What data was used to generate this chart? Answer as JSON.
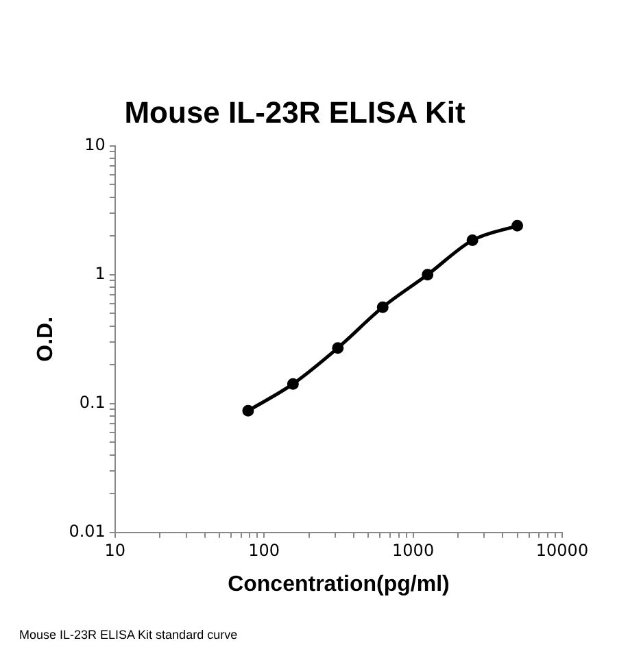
{
  "chart_data": {
    "type": "line",
    "title": "Mouse IL-23R ELISA Kit",
    "xlabel": "Concentration(pg/ml)",
    "ylabel": "O.D.",
    "annotations": [
      "Mouse IL-23R ELISA Kit standard curve"
    ],
    "x": [
      78.125,
      156.25,
      312.5,
      625,
      1250,
      2500,
      5000
    ],
    "series": [
      {
        "color": "#000000",
        "values": [
          0.088,
          0.142,
          0.27,
          0.56,
          1.0,
          1.85,
          2.4
        ]
      }
    ],
    "log": "xy",
    "xlim": [
      10,
      10000
    ],
    "ylim": [
      0.01,
      10
    ],
    "xticks": [
      10,
      {
        "value": 20,
        "label": null
      },
      {
        "value": 30,
        "label": null
      },
      {
        "value": 40,
        "label": null
      },
      {
        "value": 50,
        "label": null
      },
      {
        "value": 60,
        "label": null
      },
      {
        "value": 70,
        "label": null
      },
      {
        "value": 80,
        "label": null
      },
      {
        "value": 90,
        "label": null
      },
      100,
      {
        "value": 200,
        "label": null
      },
      {
        "value": 300,
        "label": null
      },
      {
        "value": 400,
        "label": null
      },
      {
        "value": 500,
        "label": null
      },
      {
        "value": 600,
        "label": null
      },
      {
        "value": 700,
        "label": null
      },
      {
        "value": 800,
        "label": null
      },
      {
        "value": 900,
        "label": null
      },
      1000,
      {
        "value": 2000,
        "label": null
      },
      {
        "value": 3000,
        "label": null
      },
      {
        "value": 4000,
        "label": null
      },
      {
        "value": 5000,
        "label": null
      },
      {
        "value": 6000,
        "label": null
      },
      {
        "value": 7000,
        "label": null
      },
      {
        "value": 8000,
        "label": null
      },
      {
        "value": 9000,
        "label": null
      },
      10000
    ],
    "yticks": [
      0.01,
      {
        "value": 0.02,
        "label": null
      },
      {
        "value": 0.03,
        "label": null
      },
      {
        "value": 0.04,
        "label": null
      },
      {
        "value": 0.05,
        "label": null
      },
      {
        "value": 0.06,
        "label": null
      },
      {
        "value": 0.07,
        "label": null
      },
      {
        "value": 0.08,
        "label": null
      },
      {
        "value": 0.09,
        "label": null
      },
      0.1,
      {
        "value": 0.2,
        "label": null
      },
      {
        "value": 0.3,
        "label": null
      },
      {
        "value": 0.4,
        "label": null
      },
      {
        "value": 0.5,
        "label": null
      },
      {
        "value": 0.6,
        "label": null
      },
      {
        "value": 0.7,
        "label": null
      },
      {
        "value": 0.8,
        "label": null
      },
      {
        "value": 0.9,
        "label": null
      },
      1,
      {
        "value": 2,
        "label": null
      },
      {
        "value": 3,
        "label": null
      },
      {
        "value": 4,
        "label": null
      },
      {
        "value": 5,
        "label": null
      },
      {
        "value": 6,
        "label": null
      },
      {
        "value": 7,
        "label": null
      },
      {
        "value": 8,
        "label": null
      },
      {
        "value": 9,
        "label": null
      },
      10
    ],
    "grid": false,
    "legend": false,
    "marker": "circle",
    "line_style": "solid"
  }
}
